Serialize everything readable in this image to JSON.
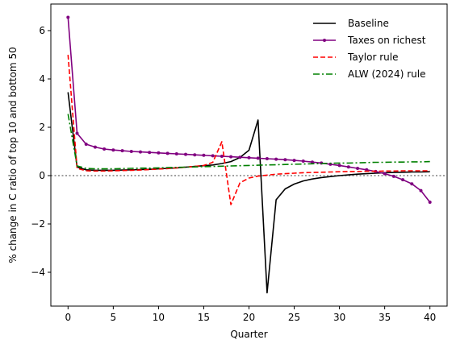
{
  "chart_data": {
    "type": "line",
    "title": "",
    "xlabel": "Quarter",
    "ylabel": "% change in C ratio of top 10 and bottom 50",
    "xlim": [
      -1.9,
      41.9
    ],
    "ylim": [
      -5.4,
      7.1
    ],
    "xticks": [
      0,
      5,
      10,
      15,
      20,
      25,
      30,
      35,
      40
    ],
    "yticks": [
      -4,
      -2,
      0,
      2,
      4,
      6
    ],
    "zero_line": {
      "y": 0,
      "color": "#808080",
      "style": "dotted"
    },
    "legend_position": "top-right",
    "series": [
      {
        "name": "Baseline",
        "color": "#000000",
        "style": "solid",
        "x": [
          0,
          1,
          2,
          3,
          4,
          5,
          6,
          7,
          8,
          9,
          10,
          11,
          12,
          13,
          14,
          15,
          16,
          17,
          18,
          19,
          20,
          21,
          22,
          23,
          24,
          25,
          26,
          27,
          28,
          29,
          30,
          31,
          32,
          33,
          34,
          35,
          36,
          37,
          38,
          39,
          40
        ],
        "y": [
          3.45,
          0.35,
          0.24,
          0.22,
          0.22,
          0.22,
          0.23,
          0.24,
          0.25,
          0.26,
          0.28,
          0.3,
          0.32,
          0.35,
          0.38,
          0.41,
          0.44,
          0.5,
          0.58,
          0.75,
          1.05,
          2.3,
          -4.85,
          -1.0,
          -0.55,
          -0.35,
          -0.22,
          -0.14,
          -0.08,
          -0.04,
          0.0,
          0.03,
          0.06,
          0.08,
          0.1,
          0.12,
          0.13,
          0.14,
          0.15,
          0.15,
          0.16
        ]
      },
      {
        "name": "Taxes on richest",
        "color": "#800080",
        "style": "solid-markers",
        "x": [
          0,
          1,
          2,
          3,
          4,
          5,
          6,
          7,
          8,
          9,
          10,
          11,
          12,
          13,
          14,
          15,
          16,
          17,
          18,
          19,
          20,
          21,
          22,
          23,
          24,
          25,
          26,
          27,
          28,
          29,
          30,
          31,
          32,
          33,
          34,
          35,
          36,
          37,
          38,
          39,
          40
        ],
        "y": [
          6.55,
          1.75,
          1.3,
          1.18,
          1.1,
          1.06,
          1.03,
          1.0,
          0.98,
          0.96,
          0.94,
          0.92,
          0.9,
          0.88,
          0.86,
          0.84,
          0.82,
          0.8,
          0.78,
          0.76,
          0.74,
          0.72,
          0.7,
          0.68,
          0.66,
          0.63,
          0.6,
          0.56,
          0.52,
          0.47,
          0.42,
          0.36,
          0.3,
          0.24,
          0.17,
          0.08,
          -0.03,
          -0.17,
          -0.34,
          -0.62,
          -1.1
        ]
      },
      {
        "name": "Taylor rule",
        "color": "#ff0000",
        "style": "dashed",
        "x": [
          0,
          1,
          2,
          3,
          4,
          5,
          6,
          7,
          8,
          9,
          10,
          11,
          12,
          13,
          14,
          15,
          16,
          17,
          18,
          19,
          20,
          21,
          22,
          23,
          24,
          25,
          26,
          27,
          28,
          29,
          30,
          31,
          32,
          33,
          34,
          35,
          36,
          37,
          38,
          39,
          40
        ],
        "y": [
          5.0,
          0.3,
          0.2,
          0.19,
          0.19,
          0.2,
          0.21,
          0.22,
          0.23,
          0.25,
          0.27,
          0.29,
          0.32,
          0.35,
          0.38,
          0.42,
          0.55,
          1.4,
          -1.2,
          -0.3,
          -0.1,
          -0.02,
          0.02,
          0.06,
          0.08,
          0.1,
          0.12,
          0.13,
          0.14,
          0.15,
          0.16,
          0.17,
          0.17,
          0.18,
          0.18,
          0.19,
          0.19,
          0.2,
          0.2,
          0.2,
          0.2
        ]
      },
      {
        "name": "ALW (2024) rule",
        "color": "#008000",
        "style": "dashdot",
        "x": [
          0,
          1,
          2,
          3,
          4,
          5,
          6,
          7,
          8,
          9,
          10,
          11,
          12,
          13,
          14,
          15,
          16,
          17,
          18,
          19,
          20,
          21,
          22,
          23,
          24,
          25,
          26,
          27,
          28,
          29,
          30,
          31,
          32,
          33,
          34,
          35,
          36,
          37,
          38,
          39,
          40
        ],
        "y": [
          2.55,
          0.4,
          0.3,
          0.28,
          0.28,
          0.28,
          0.29,
          0.3,
          0.31,
          0.31,
          0.32,
          0.33,
          0.34,
          0.35,
          0.36,
          0.37,
          0.38,
          0.39,
          0.4,
          0.41,
          0.42,
          0.43,
          0.44,
          0.45,
          0.46,
          0.47,
          0.48,
          0.49,
          0.5,
          0.51,
          0.52,
          0.52,
          0.53,
          0.54,
          0.55,
          0.55,
          0.56,
          0.56,
          0.57,
          0.57,
          0.58
        ]
      }
    ]
  }
}
